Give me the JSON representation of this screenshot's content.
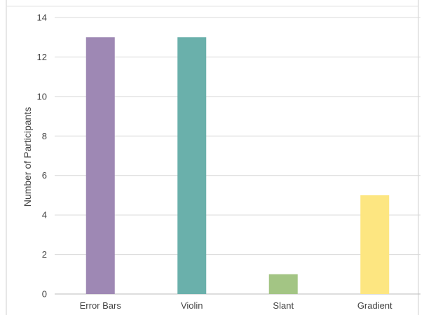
{
  "chart_data": {
    "type": "bar",
    "title": "",
    "xlabel": "",
    "ylabel": "Number of Participants",
    "categories": [
      "Error Bars",
      "Violin",
      "Slant",
      "Gradient"
    ],
    "values": [
      13,
      13,
      1,
      5
    ],
    "colors": [
      "#9e88b4",
      "#6ab0ab",
      "#a3c584",
      "#fde681"
    ],
    "ylim": [
      0,
      14
    ],
    "yticks": [
      0,
      2,
      4,
      6,
      8,
      10,
      12,
      14
    ],
    "grid": true,
    "legend": "none"
  }
}
